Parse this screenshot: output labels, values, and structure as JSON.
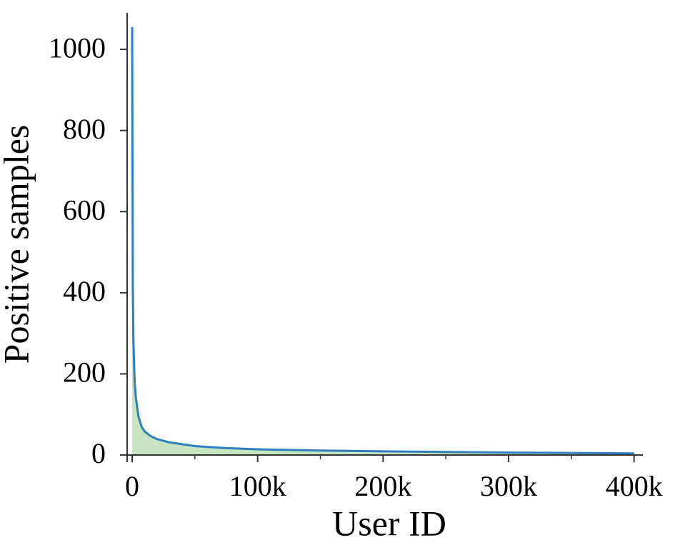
{
  "chart_data": {
    "type": "area",
    "x_label": "User ID",
    "y_label": "Positive samples",
    "x": [
      0,
      500,
      1000,
      2000,
      3000,
      5000,
      7500,
      10000,
      15000,
      20000,
      30000,
      50000,
      75000,
      100000,
      150000,
      200000,
      250000,
      300000,
      350000,
      400000
    ],
    "values": [
      1055,
      420,
      280,
      180,
      140,
      95,
      70,
      58,
      46,
      39,
      31,
      22,
      17,
      14,
      11,
      9,
      7.5,
      6,
      5,
      4
    ],
    "color": "#2f7fbf",
    "fill_color": "#c7e4c3",
    "xlim": [
      -4000,
      407000
    ],
    "xticks": [
      0,
      {
        "value": 100000,
        "label": "100k"
      },
      {
        "value": 200000,
        "label": "200k"
      },
      {
        "value": 300000,
        "label": "300k"
      },
      {
        "value": 400000,
        "label": "400k"
      }
    ],
    "xminor_ticks": [
      50000,
      150000,
      250000,
      350000
    ],
    "ylim": [
      0,
      1090
    ],
    "yticks": [
      0,
      200,
      400,
      600,
      800,
      1000
    ],
    "grid": false
  }
}
